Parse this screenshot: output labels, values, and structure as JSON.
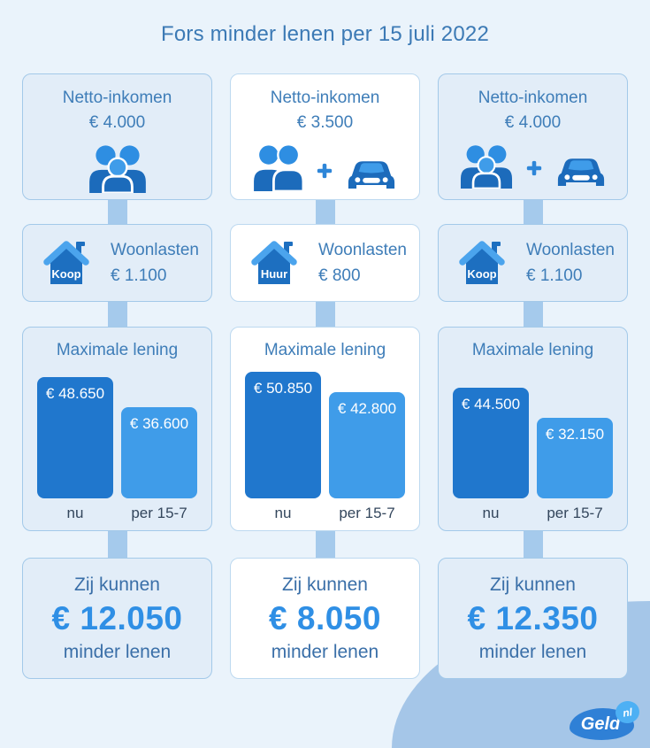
{
  "title": "Fors minder lenen per 15 juli 2022",
  "colors": {
    "background": "#eaf3fb",
    "tinted_card": "#e2edf8",
    "card_border": "#a3c9e9",
    "connector": "#a5caec",
    "heading_blue": "#3e7db8",
    "bar_now": "#2077cd",
    "bar_after": "#3f9ce9",
    "icon_body_blue": "#1c6bbb",
    "icon_head_blue": "#2e8ee2",
    "roof_blue": "#4ba4ed",
    "result_amount_blue": "#2f8fe5",
    "corner_blob": "#a5c6e8",
    "logo_blob": "#2f80d6",
    "logo_nl_bubble": "#4db0f4"
  },
  "columns": [
    {
      "tone": "tinted",
      "income": {
        "label": "Netto-inkomen",
        "amount": "€ 4.000",
        "icons": [
          "family-icon"
        ]
      },
      "housing": {
        "label": "Woonlasten",
        "amount": "€ 1.100",
        "house_tag": "Koop",
        "icons": [
          "house-icon"
        ]
      },
      "loan": {
        "title": "Maximale lening",
        "bars": [
          {
            "label": "nu",
            "amount": "€ 48.650",
            "value": 48650
          },
          {
            "label": "per 15-7",
            "amount": "€ 36.600",
            "value": 36600
          }
        ]
      },
      "result": {
        "prefix": "Zij kunnen",
        "amount": "€ 12.050",
        "suffix": "minder lenen"
      }
    },
    {
      "tone": "white",
      "income": {
        "label": "Netto-inkomen",
        "amount": "€ 3.500",
        "icons": [
          "couple-icon",
          "plus-icon",
          "car-icon"
        ]
      },
      "housing": {
        "label": "Woonlasten",
        "amount": "€ 800",
        "house_tag": "Huur",
        "icons": [
          "house-icon"
        ]
      },
      "loan": {
        "title": "Maximale lening",
        "bars": [
          {
            "label": "nu",
            "amount": "€ 50.850",
            "value": 50850
          },
          {
            "label": "per 15-7",
            "amount": "€ 42.800",
            "value": 42800
          }
        ]
      },
      "result": {
        "prefix": "Zij kunnen",
        "amount": "€ 8.050",
        "suffix": "minder lenen"
      }
    },
    {
      "tone": "tinted",
      "income": {
        "label": "Netto-inkomen",
        "amount": "€ 4.000",
        "icons": [
          "family-icon",
          "plus-icon",
          "car-icon"
        ]
      },
      "housing": {
        "label": "Woonlasten",
        "amount": "€ 1.100",
        "house_tag": "Koop",
        "icons": [
          "house-icon"
        ]
      },
      "loan": {
        "title": "Maximale lening",
        "bars": [
          {
            "label": "nu",
            "amount": "€ 44.500",
            "value": 44500
          },
          {
            "label": "per 15-7",
            "amount": "€ 32.150",
            "value": 32150
          }
        ]
      },
      "result": {
        "prefix": "Zij kunnen",
        "amount": "€ 12.350",
        "suffix": "minder lenen"
      }
    }
  ],
  "chart_data": [
    {
      "type": "bar",
      "title": "Maximale lening",
      "categories": [
        "nu",
        "per 15-7"
      ],
      "values": [
        48650,
        36600
      ],
      "data_labels": [
        "€ 48.650",
        "€ 36.600"
      ],
      "colors": [
        "#2077cd",
        "#3f9ce9"
      ],
      "legend": false,
      "grid": false,
      "ylim": [
        0,
        50850
      ]
    },
    {
      "type": "bar",
      "title": "Maximale lening",
      "categories": [
        "nu",
        "per 15-7"
      ],
      "values": [
        50850,
        42800
      ],
      "data_labels": [
        "€ 50.850",
        "€ 42.800"
      ],
      "colors": [
        "#2077cd",
        "#3f9ce9"
      ],
      "legend": false,
      "grid": false,
      "ylim": [
        0,
        50850
      ]
    },
    {
      "type": "bar",
      "title": "Maximale lening",
      "categories": [
        "nu",
        "per 15-7"
      ],
      "values": [
        44500,
        32150
      ],
      "data_labels": [
        "€ 44.500",
        "€ 32.150"
      ],
      "colors": [
        "#2077cd",
        "#3f9ce9"
      ],
      "legend": false,
      "grid": false,
      "ylim": [
        0,
        50850
      ]
    }
  ],
  "logo": {
    "brand": "Geld",
    "tld": "nl"
  }
}
